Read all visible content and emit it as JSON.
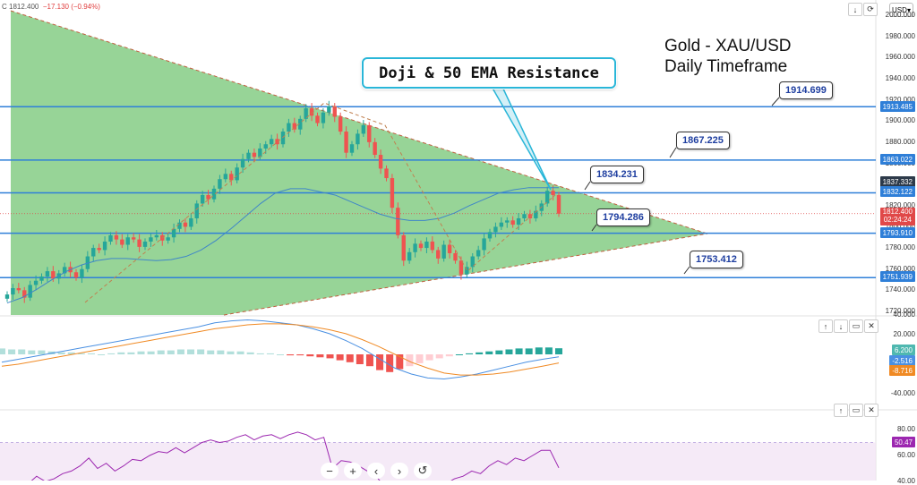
{
  "header": {
    "ohlc_prefix": "C",
    "close": "1812.400",
    "change": "−17.130",
    "change_pct": "(−0.94%)",
    "currency": "USD"
  },
  "title": {
    "line1": "Gold - XAU/USD",
    "line2": "Daily Timeframe"
  },
  "callout": "Doji & 50 EMA Resistance",
  "levels": [
    {
      "label": "1914.699"
    },
    {
      "label": "1867.225"
    },
    {
      "label": "1834.231"
    },
    {
      "label": "1794.286"
    },
    {
      "label": "1753.412"
    }
  ],
  "price_tags": {
    "t1913": "1913.485",
    "t1863": "1863.022",
    "t1837": "1837.332",
    "t1832": "1832.122",
    "current": "1812.400",
    "countdown": "02:24:24",
    "t1793": "1793.910",
    "t1751": "1751.939"
  },
  "macd_tags": {
    "hist": "6.200",
    "macd": "-2.516",
    "signal": "-8.716"
  },
  "rsi_tag": "50.47",
  "colors": {
    "triangle": "#8ccf8c",
    "up": "#26a69a",
    "down": "#ef5350",
    "levels": "#2f7fd8",
    "ema": "#3f86c8",
    "callout": "#29b6d8",
    "rsi": "#9c27b0"
  },
  "chart_data": [
    {
      "type": "candlestick",
      "name_hint": "price",
      "ylim": [
        1700,
        2000
      ],
      "y_ticks": [
        2000,
        1980,
        1960,
        1940,
        1920,
        1900,
        1880,
        1860,
        1840,
        1820,
        1800,
        1780,
        1760,
        1740,
        1720
      ],
      "y_tick_labels": [
        "2000.000",
        "1980.000",
        "1960.000",
        "1940.000",
        "1920.000",
        "1900.000",
        "1880.000",
        "1860.000",
        "1840.000",
        "1820.000",
        "1800.000",
        "1780.000",
        "1760.000",
        "1740.000",
        "1720.000"
      ],
      "horizontal_levels": [
        1913.485,
        1863.022,
        1832.122,
        1793.91,
        1751.939
      ],
      "closes": [
        1736,
        1742,
        1740,
        1733,
        1745,
        1749,
        1753,
        1758,
        1751,
        1756,
        1762,
        1757,
        1752,
        1760,
        1772,
        1780,
        1778,
        1786,
        1792,
        1788,
        1783,
        1790,
        1788,
        1781,
        1786,
        1790,
        1792,
        1787,
        1790,
        1798,
        1804,
        1800,
        1808,
        1822,
        1830,
        1826,
        1836,
        1845,
        1850,
        1844,
        1856,
        1864,
        1870,
        1866,
        1874,
        1878,
        1883,
        1878,
        1890,
        1898,
        1892,
        1902,
        1912,
        1905,
        1898,
        1908,
        1914,
        1904,
        1890,
        1870,
        1878,
        1888,
        1896,
        1880,
        1868,
        1855,
        1846,
        1818,
        1792,
        1768,
        1776,
        1784,
        1780,
        1786,
        1778,
        1770,
        1783,
        1775,
        1768,
        1755,
        1762,
        1772,
        1778,
        1789,
        1795,
        1800,
        1804,
        1806,
        1802,
        1808,
        1812,
        1808,
        1815,
        1822,
        1834,
        1830,
        1812.4
      ],
      "ema50": [
        1728,
        1733,
        1741,
        1750,
        1758,
        1764,
        1768,
        1770,
        1770,
        1769,
        1768,
        1769,
        1772,
        1778,
        1787,
        1798,
        1810,
        1822,
        1832,
        1836,
        1836,
        1833,
        1830,
        1824,
        1818,
        1812,
        1808,
        1806,
        1806,
        1808,
        1813,
        1820,
        1826,
        1832,
        1835,
        1837,
        1837,
        1837
      ],
      "triangle": {
        "apex_price": 1793.5
      }
    },
    {
      "type": "bar",
      "name_hint": "MACD",
      "y_ticks": [
        40,
        20,
        0,
        -20,
        -40
      ],
      "y_tick_labels": [
        "40.000",
        "20.000",
        "0.000",
        "-20.000",
        "-40.000"
      ],
      "histogram": [
        6,
        5,
        5,
        4,
        4,
        3,
        2,
        2,
        1,
        1,
        0,
        1,
        2,
        2,
        3,
        3,
        4,
        4,
        5,
        5,
        5,
        4,
        4,
        3,
        3,
        2,
        1,
        1,
        0,
        -1,
        -1,
        -2,
        -3,
        -4,
        -6,
        -8,
        -10,
        -12,
        -16,
        -18,
        -15,
        -12,
        -9,
        -6,
        -4,
        -2,
        0,
        1,
        2,
        3,
        4,
        5,
        6,
        6,
        7,
        7,
        6.2
      ],
      "macd": [
        -8,
        -5,
        -2,
        1,
        4,
        7,
        10,
        13,
        16,
        19,
        22,
        25,
        28,
        32,
        34,
        35,
        34,
        32,
        30,
        26,
        21,
        14,
        6,
        -4,
        -14,
        -20,
        -24,
        -25,
        -23,
        -20,
        -16,
        -12,
        -8,
        -5,
        -2.516
      ],
      "signal": [
        -12,
        -10,
        -7,
        -4,
        -1,
        2,
        5,
        8,
        11,
        14,
        17,
        20,
        23,
        26,
        28,
        30,
        31,
        31,
        30,
        28,
        25,
        21,
        15,
        8,
        0,
        -8,
        -14,
        -19,
        -21,
        -21,
        -20,
        -18,
        -15,
        -12,
        -8.716
      ]
    },
    {
      "type": "line",
      "name_hint": "RSI",
      "y_ticks": [
        80,
        60,
        40
      ],
      "y_tick_labels": [
        "80.00",
        "60.00",
        "40.00"
      ],
      "values": [
        38,
        34,
        32,
        38,
        44,
        40,
        42,
        46,
        48,
        52,
        58,
        50,
        54,
        48,
        52,
        57,
        56,
        60,
        63,
        62,
        66,
        62,
        66,
        70,
        72,
        70,
        71,
        74,
        76,
        72,
        75,
        76,
        73,
        76,
        78,
        76,
        72,
        74,
        50,
        56,
        55,
        52,
        48,
        44,
        36,
        32,
        25,
        20,
        26,
        34,
        36,
        38,
        42,
        44,
        48,
        46,
        52,
        56,
        53,
        58,
        56,
        60,
        64,
        64,
        50.47
      ]
    }
  ]
}
